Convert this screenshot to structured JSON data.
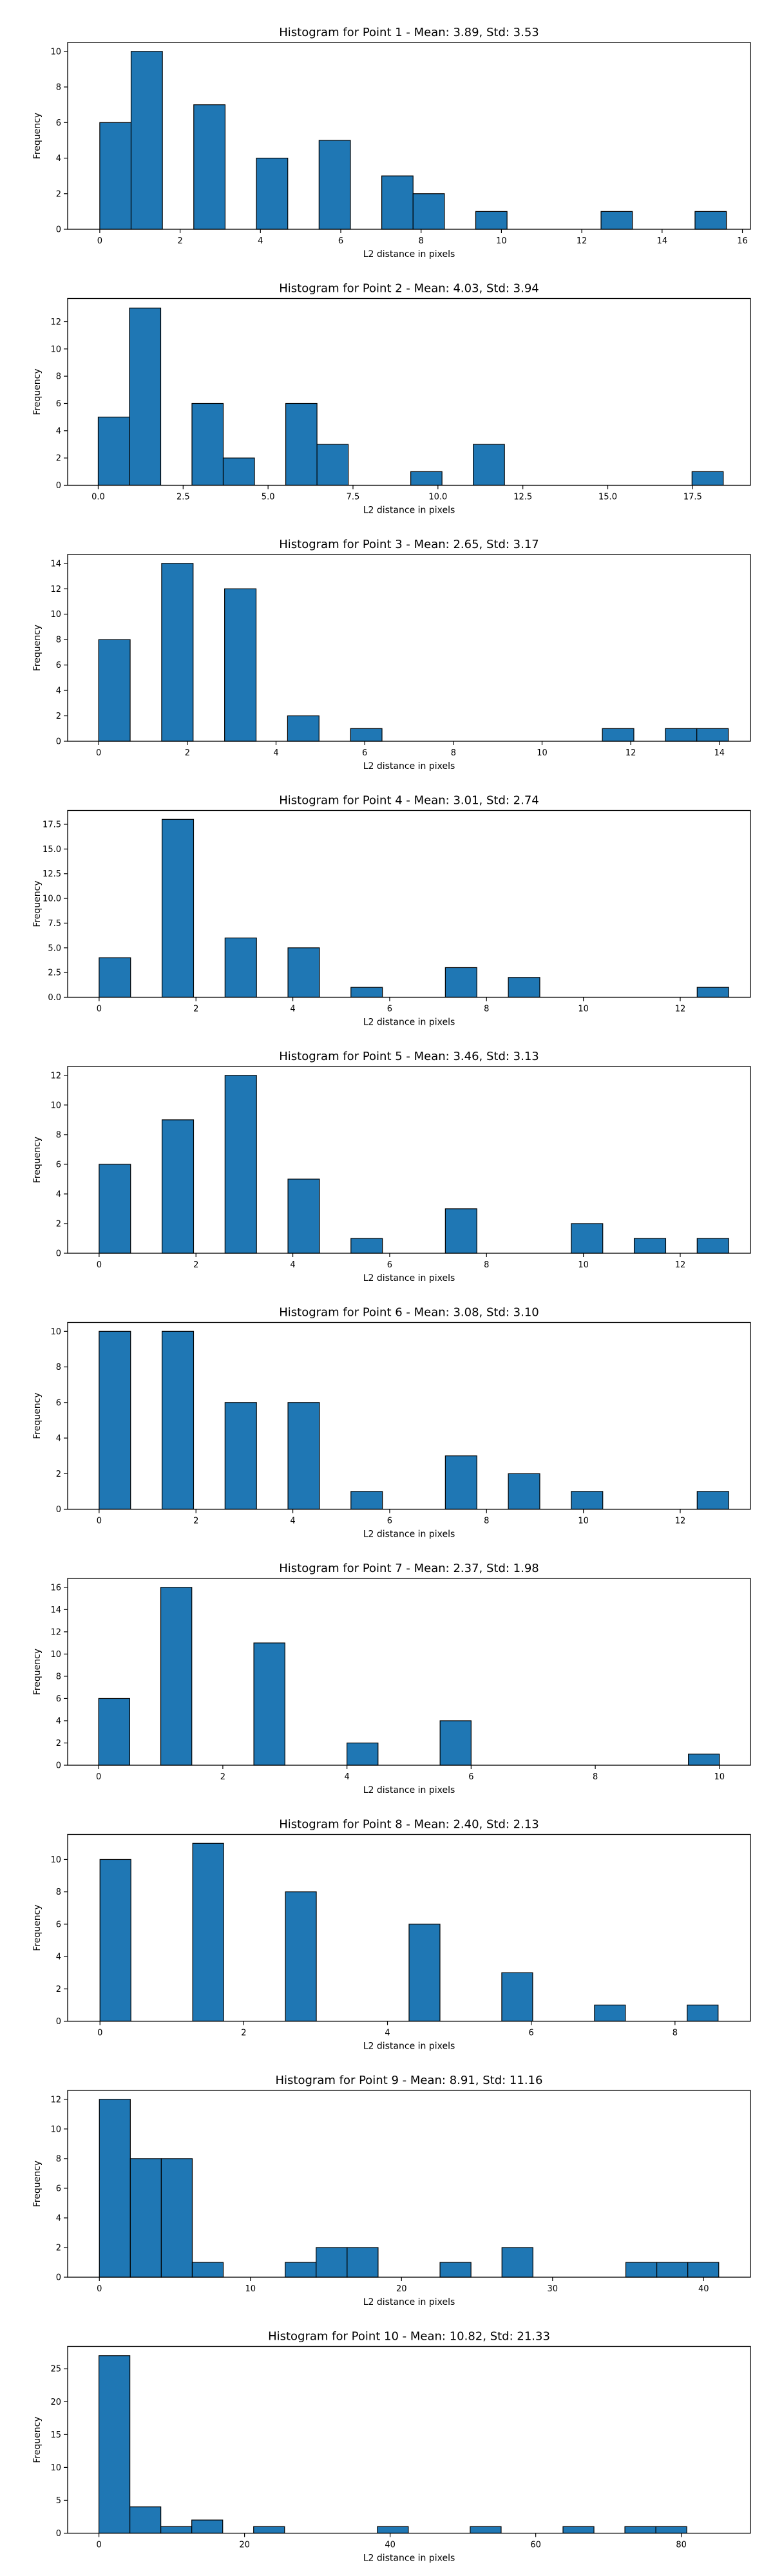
{
  "figure": {
    "bar_color": "#1f77b4",
    "edge_color": "#000000",
    "background": "#ffffff"
  },
  "chart_data": [
    {
      "type": "bar",
      "title": "Histogram for Point 1 - Mean: 3.89, Std: 3.53",
      "xlabel": "L2 distance in pixels",
      "ylabel": "Frequency",
      "xlim": [
        -0.8,
        16.2
      ],
      "ylim": [
        0,
        10.5
      ],
      "xticks": [
        0,
        2,
        4,
        6,
        8,
        10,
        12,
        14,
        16
      ],
      "xtick_labels": [
        "0",
        "2",
        "4",
        "6",
        "8",
        "10",
        "12",
        "14",
        "16"
      ],
      "yticks": [
        0,
        2,
        4,
        6,
        8,
        10
      ],
      "ytick_labels": [
        "0",
        "2",
        "4",
        "6",
        "8",
        "10"
      ],
      "bin_edges": [
        0.0,
        0.78,
        1.56,
        2.34,
        3.12,
        3.9,
        4.68,
        5.46,
        6.24,
        7.02,
        7.8,
        8.58,
        9.36,
        10.14,
        10.92,
        11.7,
        12.48,
        13.26,
        14.04,
        14.82,
        15.6
      ],
      "counts": [
        6,
        10,
        0,
        7,
        0,
        4,
        0,
        5,
        0,
        3,
        2,
        0,
        1,
        0,
        0,
        0,
        1,
        0,
        0,
        1
      ]
    },
    {
      "type": "bar",
      "title": "Histogram for Point 2 - Mean: 4.03, Std: 3.94",
      "xlabel": "L2 distance in pixels",
      "ylabel": "Frequency",
      "xlim": [
        -0.9,
        19.2
      ],
      "ylim": [
        0,
        13.7
      ],
      "xticks": [
        0.0,
        2.5,
        5.0,
        7.5,
        10.0,
        12.5,
        15.0,
        17.5
      ],
      "xtick_labels": [
        "0.0",
        "2.5",
        "5.0",
        "7.5",
        "10.0",
        "12.5",
        "15.0",
        "17.5"
      ],
      "yticks": [
        0,
        2,
        4,
        6,
        8,
        10,
        12
      ],
      "ytick_labels": [
        "0",
        "2",
        "4",
        "6",
        "8",
        "10",
        "12"
      ],
      "bin_edges": [
        0.0,
        0.92,
        1.84,
        2.76,
        3.68,
        4.6,
        5.52,
        6.44,
        7.36,
        8.28,
        9.2,
        10.12,
        11.04,
        11.96,
        12.88,
        13.8,
        14.72,
        15.64,
        16.56,
        17.48,
        18.4
      ],
      "counts": [
        5,
        13,
        0,
        6,
        2,
        0,
        6,
        3,
        0,
        0,
        1,
        0,
        3,
        0,
        0,
        0,
        0,
        0,
        0,
        1
      ]
    },
    {
      "type": "bar",
      "title": "Histogram for Point 3 - Mean: 2.65, Std: 3.17",
      "xlabel": "L2 distance in pixels",
      "ylabel": "Frequency",
      "xlim": [
        -0.7,
        14.7
      ],
      "ylim": [
        0,
        14.7
      ],
      "xticks": [
        0,
        2,
        4,
        6,
        8,
        10,
        12,
        14
      ],
      "xtick_labels": [
        "0",
        "2",
        "4",
        "6",
        "8",
        "10",
        "12",
        "14"
      ],
      "yticks": [
        0,
        2,
        4,
        6,
        8,
        10,
        12,
        14
      ],
      "ytick_labels": [
        "0",
        "2",
        "4",
        "6",
        "8",
        "10",
        "12",
        "14"
      ],
      "bin_edges": [
        0.0,
        0.71,
        1.42,
        2.13,
        2.84,
        3.55,
        4.26,
        4.97,
        5.68,
        6.39,
        7.1,
        7.81,
        8.52,
        9.23,
        9.94,
        10.65,
        11.36,
        12.07,
        12.78,
        13.49,
        14.2
      ],
      "counts": [
        8,
        0,
        14,
        0,
        12,
        0,
        2,
        0,
        1,
        0,
        0,
        0,
        0,
        0,
        0,
        0,
        1,
        0,
        1,
        1
      ]
    },
    {
      "type": "bar",
      "title": "Histogram for Point 4 - Mean: 3.01, Std: 2.74",
      "xlabel": "L2 distance in pixels",
      "ylabel": "Frequency",
      "xlim": [
        -0.65,
        13.45
      ],
      "ylim": [
        0,
        18.9
      ],
      "xticks": [
        0,
        2,
        4,
        6,
        8,
        10,
        12
      ],
      "xtick_labels": [
        "0",
        "2",
        "4",
        "6",
        "8",
        "10",
        "12"
      ],
      "yticks": [
        0.0,
        2.5,
        5.0,
        7.5,
        10.0,
        12.5,
        15.0,
        17.5
      ],
      "ytick_labels": [
        "0.0",
        "2.5",
        "5.0",
        "7.5",
        "10.0",
        "12.5",
        "15.0",
        "17.5"
      ],
      "bin_edges": [
        0.0,
        0.65,
        1.3,
        1.95,
        2.6,
        3.25,
        3.9,
        4.55,
        5.2,
        5.85,
        6.5,
        7.15,
        7.8,
        8.45,
        9.1,
        9.75,
        10.4,
        11.05,
        11.7,
        12.35,
        13.0
      ],
      "counts": [
        4,
        0,
        18,
        0,
        6,
        0,
        5,
        0,
        1,
        0,
        0,
        3,
        0,
        2,
        0,
        0,
        0,
        0,
        0,
        1
      ]
    },
    {
      "type": "bar",
      "title": "Histogram for Point 5 - Mean: 3.46, Std: 3.13",
      "xlabel": "L2 distance in pixels",
      "ylabel": "Frequency",
      "xlim": [
        -0.65,
        13.45
      ],
      "ylim": [
        0,
        12.6
      ],
      "xticks": [
        0,
        2,
        4,
        6,
        8,
        10,
        12
      ],
      "xtick_labels": [
        "0",
        "2",
        "4",
        "6",
        "8",
        "10",
        "12"
      ],
      "yticks": [
        0,
        2,
        4,
        6,
        8,
        10,
        12
      ],
      "ytick_labels": [
        "0",
        "2",
        "4",
        "6",
        "8",
        "10",
        "12"
      ],
      "bin_edges": [
        0.0,
        0.65,
        1.3,
        1.95,
        2.6,
        3.25,
        3.9,
        4.55,
        5.2,
        5.85,
        6.5,
        7.15,
        7.8,
        8.45,
        9.1,
        9.75,
        10.4,
        11.05,
        11.7,
        12.35,
        13.0
      ],
      "counts": [
        6,
        0,
        9,
        0,
        12,
        0,
        5,
        0,
        1,
        0,
        0,
        3,
        0,
        0,
        0,
        2,
        0,
        1,
        0,
        1
      ]
    },
    {
      "type": "bar",
      "title": "Histogram for Point 6 - Mean: 3.08, Std: 3.10",
      "xlabel": "L2 distance in pixels",
      "ylabel": "Frequency",
      "xlim": [
        -0.65,
        13.45
      ],
      "ylim": [
        0,
        10.5
      ],
      "xticks": [
        0,
        2,
        4,
        6,
        8,
        10,
        12
      ],
      "xtick_labels": [
        "0",
        "2",
        "4",
        "6",
        "8",
        "10",
        "12"
      ],
      "yticks": [
        0,
        2,
        4,
        6,
        8,
        10
      ],
      "ytick_labels": [
        "0",
        "2",
        "4",
        "6",
        "8",
        "10"
      ],
      "bin_edges": [
        0.0,
        0.65,
        1.3,
        1.95,
        2.6,
        3.25,
        3.9,
        4.55,
        5.2,
        5.85,
        6.5,
        7.15,
        7.8,
        8.45,
        9.1,
        9.75,
        10.4,
        11.05,
        11.7,
        12.35,
        13.0
      ],
      "counts": [
        10,
        0,
        10,
        0,
        6,
        0,
        6,
        0,
        1,
        0,
        0,
        3,
        0,
        2,
        0,
        1,
        0,
        0,
        0,
        1
      ]
    },
    {
      "type": "bar",
      "title": "Histogram for Point 7 - Mean: 2.37, Std: 1.98",
      "xlabel": "L2 distance in pixels",
      "ylabel": "Frequency",
      "xlim": [
        -0.5,
        10.5
      ],
      "ylim": [
        0,
        16.8
      ],
      "xticks": [
        0,
        2,
        4,
        6,
        8,
        10
      ],
      "xtick_labels": [
        "0",
        "2",
        "4",
        "6",
        "8",
        "10"
      ],
      "yticks": [
        0,
        2,
        4,
        6,
        8,
        10,
        12,
        14,
        16
      ],
      "ytick_labels": [
        "0",
        "2",
        "4",
        "6",
        "8",
        "10",
        "12",
        "14",
        "16"
      ],
      "bin_edges": [
        0.0,
        0.5,
        1.0,
        1.5,
        2.0,
        2.5,
        3.0,
        3.5,
        4.0,
        4.5,
        5.0,
        5.5,
        6.0,
        6.5,
        7.0,
        7.5,
        8.0,
        8.5,
        9.0,
        9.5,
        10.0
      ],
      "counts": [
        6,
        0,
        16,
        0,
        0,
        11,
        0,
        0,
        2,
        0,
        0,
        4,
        0,
        0,
        0,
        0,
        0,
        0,
        0,
        1
      ]
    },
    {
      "type": "bar",
      "title": "Histogram for Point 8 - Mean: 2.40, Std: 2.13",
      "xlabel": "L2 distance in pixels",
      "ylabel": "Frequency",
      "xlim": [
        -0.45,
        9.05
      ],
      "ylim": [
        0,
        11.55
      ],
      "xticks": [
        0,
        2,
        4,
        6,
        8
      ],
      "xtick_labels": [
        "0",
        "2",
        "4",
        "6",
        "8"
      ],
      "yticks": [
        0,
        2,
        4,
        6,
        8,
        10
      ],
      "ytick_labels": [
        "0",
        "2",
        "4",
        "6",
        "8",
        "10"
      ],
      "bin_edges": [
        0.0,
        0.43,
        0.86,
        1.29,
        1.72,
        2.15,
        2.58,
        3.01,
        3.44,
        3.87,
        4.3,
        4.73,
        5.16,
        5.59,
        6.02,
        6.45,
        6.88,
        7.31,
        7.74,
        8.17,
        8.6
      ],
      "counts": [
        10,
        0,
        0,
        11,
        0,
        0,
        8,
        0,
        0,
        0,
        6,
        0,
        0,
        3,
        0,
        0,
        1,
        0,
        0,
        1
      ]
    },
    {
      "type": "bar",
      "title": "Histogram for Point 9 - Mean: 8.91, Std: 11.16",
      "xlabel": "L2 distance in pixels",
      "ylabel": "Frequency",
      "xlim": [
        -2.1,
        43.1
      ],
      "ylim": [
        0,
        12.6
      ],
      "xticks": [
        0,
        10,
        20,
        30,
        40
      ],
      "xtick_labels": [
        "0",
        "10",
        "20",
        "30",
        "40"
      ],
      "yticks": [
        0,
        2,
        4,
        6,
        8,
        10,
        12
      ],
      "ytick_labels": [
        "0",
        "2",
        "4",
        "6",
        "8",
        "10",
        "12"
      ],
      "bin_edges": [
        0.0,
        2.05,
        4.1,
        6.15,
        8.2,
        10.25,
        12.3,
        14.35,
        16.4,
        18.45,
        20.5,
        22.55,
        24.6,
        26.65,
        28.7,
        30.75,
        32.8,
        34.85,
        36.9,
        38.95,
        41.0
      ],
      "counts": [
        12,
        8,
        8,
        1,
        0,
        0,
        1,
        2,
        2,
        0,
        0,
        1,
        0,
        2,
        0,
        0,
        0,
        1,
        1,
        1
      ]
    },
    {
      "type": "bar",
      "title": "Histogram for Point 10 - Mean: 10.82, Std: 21.33",
      "xlabel": "L2 distance in pixels",
      "ylabel": "Frequency",
      "xlim": [
        -4.3,
        89.5
      ],
      "ylim": [
        0,
        28.4
      ],
      "xticks": [
        0,
        20,
        40,
        60,
        80
      ],
      "xtick_labels": [
        "0",
        "20",
        "40",
        "60",
        "80"
      ],
      "yticks": [
        0,
        5,
        10,
        15,
        20,
        25
      ],
      "ytick_labels": [
        "0",
        "5",
        "10",
        "15",
        "20",
        "25"
      ],
      "bin_edges": [
        0.0,
        4.25,
        8.5,
        12.75,
        17.0,
        21.25,
        25.5,
        29.75,
        34.0,
        38.25,
        42.5,
        46.75,
        51.0,
        55.25,
        59.5,
        63.75,
        68.0,
        72.25,
        76.5,
        80.75,
        85.0
      ],
      "counts": [
        27,
        4,
        1,
        2,
        0,
        1,
        0,
        0,
        0,
        1,
        0,
        0,
        1,
        0,
        0,
        1,
        0,
        1,
        1,
        0
      ]
    }
  ]
}
